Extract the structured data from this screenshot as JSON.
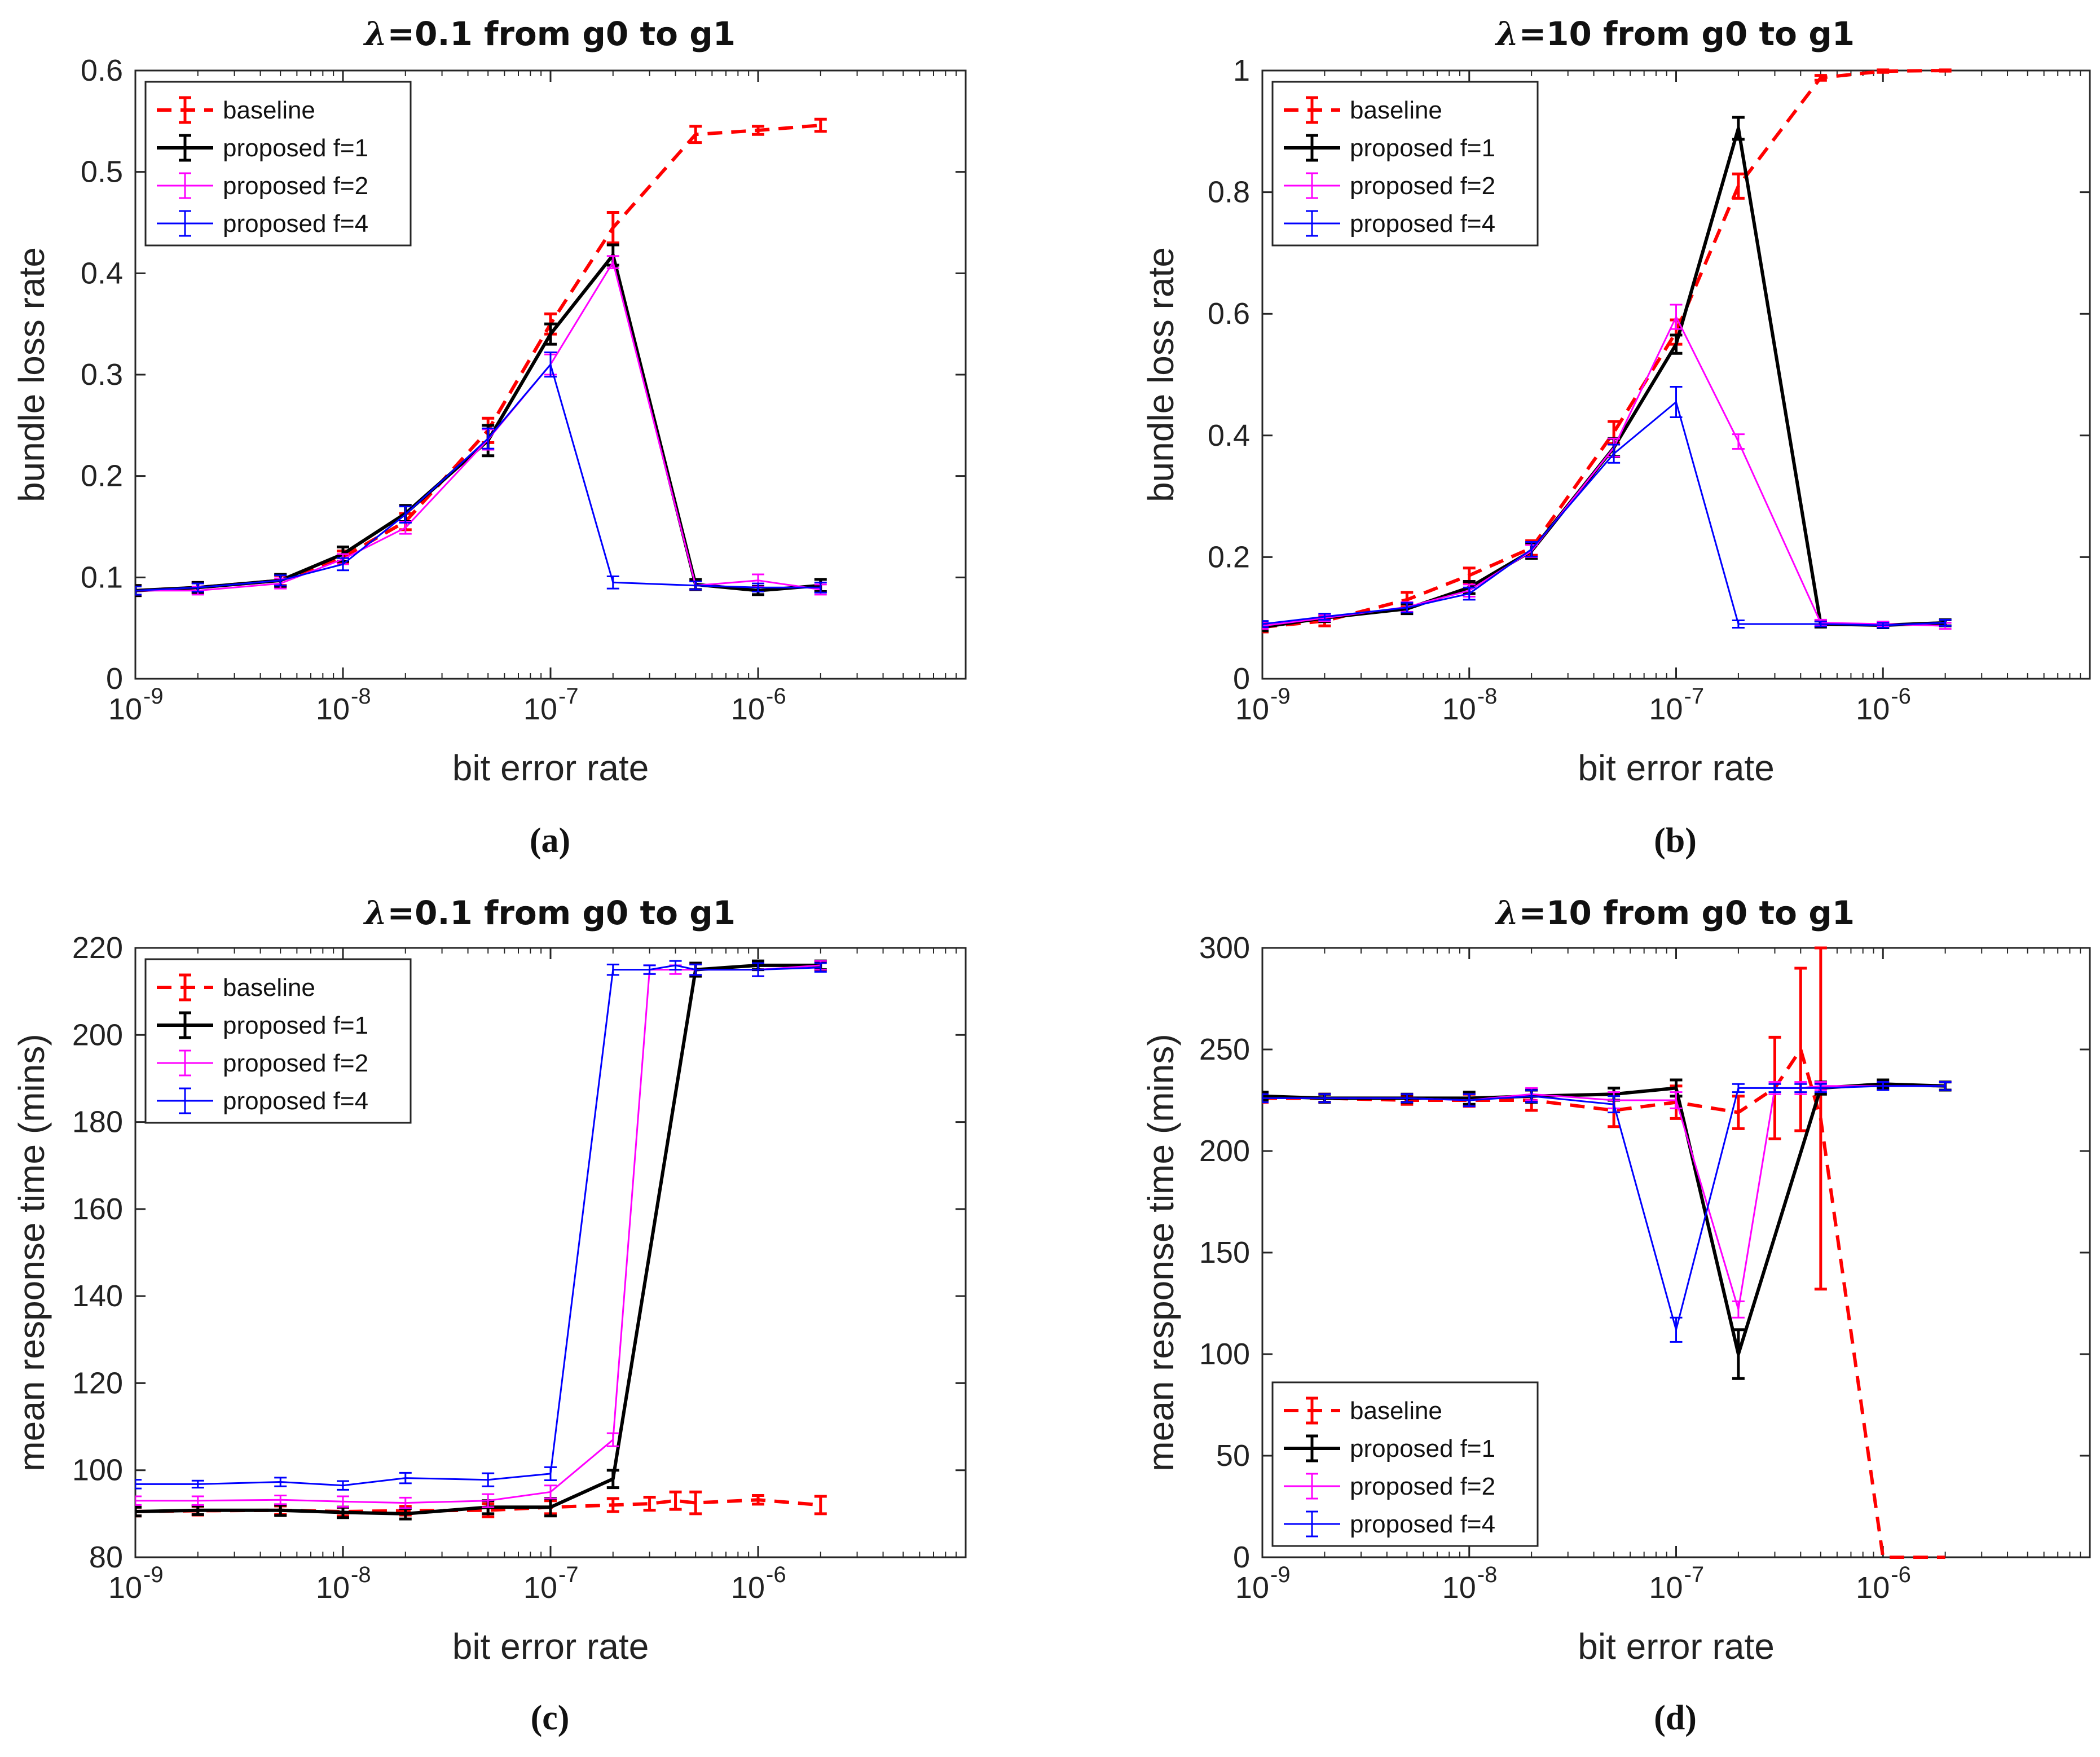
{
  "chart_data": [
    {
      "id": "a",
      "type": "line",
      "caption": "(a)",
      "title_prefix": "λ",
      "title_rest": "=0.1 from g0 to g1",
      "xlabel": "bit error rate",
      "ylabel": "bundle loss rate",
      "xscale": "log",
      "xlim": [
        -9,
        -5
      ],
      "ylim": [
        0,
        0.6
      ],
      "yticks": [
        "0",
        "0.1",
        "0.2",
        "0.3",
        "0.4",
        "0.5",
        "0.6"
      ],
      "ytick_values": [
        0,
        0.1,
        0.2,
        0.3,
        0.4,
        0.5,
        0.6
      ],
      "xticks": [
        {
          "base": "10",
          "exp": "-9"
        },
        {
          "base": "10",
          "exp": "-8"
        },
        {
          "base": "10",
          "exp": "-7"
        },
        {
          "base": "10",
          "exp": "-6"
        }
      ],
      "xtick_values": [
        -9,
        -8,
        -7,
        -6
      ],
      "legend_position": "top-left",
      "series": [
        {
          "name": "baseline",
          "color": "#ff0000",
          "dash": true,
          "width": 6,
          "x": [
            1e-09,
            2e-09,
            5e-09,
            1e-08,
            2e-08,
            5e-08,
            1e-07,
            2e-07,
            5e-07,
            1e-06,
            2e-06
          ],
          "y": [
            0.087,
            0.09,
            0.097,
            0.12,
            0.155,
            0.245,
            0.35,
            0.445,
            0.537,
            0.541,
            0.546
          ],
          "err": [
            0.005,
            0.005,
            0.005,
            0.006,
            0.008,
            0.012,
            0.01,
            0.015,
            0.008,
            0.004,
            0.006
          ]
        },
        {
          "name": "proposed f=1",
          "color": "#000000",
          "dash": false,
          "width": 6,
          "x": [
            1e-09,
            2e-09,
            5e-09,
            1e-08,
            2e-08,
            5e-08,
            1e-07,
            2e-07,
            5e-07,
            1e-06,
            2e-06
          ],
          "y": [
            0.087,
            0.09,
            0.097,
            0.123,
            0.163,
            0.235,
            0.34,
            0.418,
            0.093,
            0.087,
            0.092
          ],
          "err": [
            0.005,
            0.005,
            0.006,
            0.007,
            0.008,
            0.015,
            0.01,
            0.01,
            0.005,
            0.004,
            0.006
          ]
        },
        {
          "name": "proposed f=2",
          "color": "#ff00ff",
          "dash": false,
          "width": 3,
          "x": [
            1e-09,
            2e-09,
            5e-09,
            1e-08,
            2e-08,
            5e-08,
            1e-07,
            2e-07,
            5e-07,
            1e-06,
            2e-06
          ],
          "y": [
            0.087,
            0.087,
            0.094,
            0.118,
            0.149,
            0.236,
            0.31,
            0.411,
            0.092,
            0.097,
            0.088
          ],
          "err": [
            0.004,
            0.004,
            0.005,
            0.005,
            0.006,
            0.01,
            0.01,
            0.006,
            0.004,
            0.006,
            0.005
          ]
        },
        {
          "name": "proposed f=4",
          "color": "#0000ff",
          "dash": false,
          "width": 3,
          "x": [
            1e-09,
            2e-09,
            5e-09,
            1e-08,
            2e-08,
            5e-08,
            1e-07,
            2e-07,
            5e-07,
            1e-06,
            2e-06
          ],
          "y": [
            0.087,
            0.09,
            0.097,
            0.113,
            0.162,
            0.237,
            0.31,
            0.095,
            0.092,
            0.09,
            0.09
          ],
          "err": [
            0.004,
            0.004,
            0.005,
            0.006,
            0.008,
            0.01,
            0.012,
            0.006,
            0.004,
            0.004,
            0.005
          ]
        }
      ]
    },
    {
      "id": "b",
      "type": "line",
      "caption": "(b)",
      "title_prefix": "λ",
      "title_rest": "=10 from g0 to g1",
      "xlabel": "bit error rate",
      "ylabel": "bundle loss rate",
      "xscale": "log",
      "xlim": [
        -9,
        -5
      ],
      "ylim": [
        0,
        1
      ],
      "yticks": [
        "0",
        "0.2",
        "0.4",
        "0.6",
        "0.8",
        "1"
      ],
      "ytick_values": [
        0,
        0.2,
        0.4,
        0.6,
        0.8,
        1
      ],
      "xticks": [
        {
          "base": "10",
          "exp": "-9"
        },
        {
          "base": "10",
          "exp": "-8"
        },
        {
          "base": "10",
          "exp": "-7"
        },
        {
          "base": "10",
          "exp": "-6"
        }
      ],
      "xtick_values": [
        -9,
        -8,
        -7,
        -6
      ],
      "legend_position": "top-left",
      "series": [
        {
          "name": "baseline",
          "color": "#ff0000",
          "dash": true,
          "width": 6,
          "x": [
            1e-09,
            2e-09,
            5e-09,
            1e-08,
            2e-08,
            5e-08,
            1e-07,
            2e-07,
            5e-07,
            1e-06,
            2e-06
          ],
          "y": [
            0.085,
            0.095,
            0.13,
            0.17,
            0.215,
            0.405,
            0.57,
            0.81,
            0.988,
            0.999,
            1.0
          ],
          "err": [
            0.008,
            0.008,
            0.012,
            0.012,
            0.012,
            0.018,
            0.02,
            0.02,
            0.004,
            0.002,
            0.001
          ]
        },
        {
          "name": "proposed f=1",
          "color": "#000000",
          "dash": false,
          "width": 6,
          "x": [
            1e-09,
            2e-09,
            5e-09,
            1e-08,
            2e-08,
            5e-08,
            1e-07,
            2e-07,
            5e-07,
            1e-06,
            2e-06
          ],
          "y": [
            0.085,
            0.1,
            0.115,
            0.15,
            0.21,
            0.38,
            0.55,
            0.905,
            0.09,
            0.088,
            0.092
          ],
          "err": [
            0.006,
            0.006,
            0.008,
            0.01,
            0.012,
            0.015,
            0.015,
            0.018,
            0.005,
            0.004,
            0.005
          ]
        },
        {
          "name": "proposed f=2",
          "color": "#ff00ff",
          "dash": false,
          "width": 3,
          "x": [
            1e-09,
            2e-09,
            5e-09,
            1e-08,
            2e-08,
            5e-08,
            1e-07,
            2e-07,
            5e-07,
            1e-06,
            2e-06
          ],
          "y": [
            0.087,
            0.1,
            0.118,
            0.145,
            0.21,
            0.38,
            0.595,
            0.39,
            0.092,
            0.09,
            0.087
          ],
          "err": [
            0.005,
            0.005,
            0.008,
            0.01,
            0.01,
            0.015,
            0.02,
            0.012,
            0.005,
            0.004,
            0.005
          ]
        },
        {
          "name": "proposed f=4",
          "color": "#0000ff",
          "dash": false,
          "width": 3,
          "x": [
            1e-09,
            2e-09,
            5e-09,
            1e-08,
            2e-08,
            5e-08,
            1e-07,
            2e-07,
            5e-07,
            1e-06,
            2e-06
          ],
          "y": [
            0.09,
            0.102,
            0.117,
            0.14,
            0.213,
            0.37,
            0.455,
            0.09,
            0.09,
            0.088,
            0.092
          ],
          "err": [
            0.005,
            0.005,
            0.008,
            0.01,
            0.012,
            0.015,
            0.025,
            0.006,
            0.004,
            0.004,
            0.005
          ]
        }
      ]
    },
    {
      "id": "c",
      "type": "line",
      "caption": "(c)",
      "title_prefix": "λ",
      "title_rest": "=0.1 from g0 to g1",
      "xlabel": "bit error rate",
      "ylabel": "mean response time (mins)",
      "xscale": "log",
      "xlim": [
        -9,
        -5
      ],
      "ylim": [
        80,
        220
      ],
      "yticks": [
        "80",
        "100",
        "120",
        "140",
        "160",
        "180",
        "200",
        "220"
      ],
      "ytick_values": [
        80,
        100,
        120,
        140,
        160,
        180,
        200,
        220
      ],
      "xticks": [
        {
          "base": "10",
          "exp": "-9"
        },
        {
          "base": "10",
          "exp": "-8"
        },
        {
          "base": "10",
          "exp": "-7"
        },
        {
          "base": "10",
          "exp": "-6"
        }
      ],
      "xtick_values": [
        -9,
        -8,
        -7,
        -6
      ],
      "legend_position": "top-left",
      "series": [
        {
          "name": "baseline",
          "color": "#ff0000",
          "dash": true,
          "width": 6,
          "x": [
            1e-09,
            2e-09,
            5e-09,
            1e-08,
            2e-08,
            5e-08,
            1e-07,
            2e-07,
            3e-07,
            4e-07,
            5e-07,
            1e-06,
            2e-06
          ],
          "y": [
            90.5,
            90.7,
            90.8,
            90.5,
            90.7,
            90.8,
            91.5,
            92.0,
            92.3,
            93.0,
            92.5,
            93.2,
            92.0
          ],
          "err": [
            1.0,
            1.0,
            1.0,
            1.0,
            1.0,
            1.5,
            1.5,
            1.5,
            1.5,
            2.0,
            2.5,
            1.0,
            2.0
          ]
        },
        {
          "name": "proposed f=1",
          "color": "#000000",
          "dash": false,
          "width": 6,
          "x": [
            1e-09,
            2e-09,
            5e-09,
            1e-08,
            2e-08,
            5e-08,
            1e-07,
            2e-07,
            5e-07,
            1e-06,
            2e-06
          ],
          "y": [
            90.5,
            90.8,
            90.8,
            90.3,
            90.0,
            91.5,
            91.5,
            98.0,
            215.0,
            216.0,
            216.0
          ],
          "err": [
            1.0,
            1.0,
            1.2,
            1.2,
            1.2,
            1.5,
            2.0,
            2.0,
            1.5,
            1.0,
            1.0
          ]
        },
        {
          "name": "proposed f=2",
          "color": "#ff00ff",
          "dash": false,
          "width": 3,
          "x": [
            1e-09,
            2e-09,
            5e-09,
            1e-08,
            2e-08,
            5e-08,
            1e-07,
            2e-07,
            3e-07,
            4e-07,
            5e-07,
            1e-06,
            2e-06
          ],
          "y": [
            93.0,
            93.0,
            93.2,
            92.8,
            92.5,
            93.0,
            95.0,
            107.0,
            215.0,
            215.0,
            215.0,
            215.0,
            216.0
          ],
          "err": [
            1.0,
            1.0,
            1.0,
            1.2,
            1.2,
            1.5,
            1.5,
            1.5,
            1.0,
            1.0,
            1.2,
            1.5,
            1.0
          ]
        },
        {
          "name": "proposed f=4",
          "color": "#0000ff",
          "dash": false,
          "width": 3,
          "x": [
            1e-09,
            2e-09,
            5e-09,
            1e-08,
            2e-08,
            5e-08,
            1e-07,
            2e-07,
            3e-07,
            4e-07,
            5e-07,
            1e-06,
            2e-06
          ],
          "y": [
            96.8,
            96.8,
            97.3,
            96.5,
            98.2,
            97.8,
            99.2,
            215.0,
            215.0,
            216.0,
            215.0,
            215.0,
            215.5
          ],
          "err": [
            1.0,
            0.8,
            1.0,
            1.0,
            1.2,
            1.5,
            1.5,
            1.2,
            1.0,
            1.0,
            1.2,
            1.5,
            1.0
          ]
        }
      ]
    },
    {
      "id": "d",
      "type": "line",
      "caption": "(d)",
      "title_prefix": "λ",
      "title_rest": "=10 from g0 to g1",
      "xlabel": "bit error rate",
      "ylabel": "mean response time (mins)",
      "xscale": "log",
      "xlim": [
        -9,
        -5
      ],
      "ylim": [
        0,
        300
      ],
      "yticks": [
        "0",
        "50",
        "100",
        "150",
        "200",
        "250",
        "300"
      ],
      "ytick_values": [
        0,
        50,
        100,
        150,
        200,
        250,
        300
      ],
      "xticks": [
        {
          "base": "10",
          "exp": "-9"
        },
        {
          "base": "10",
          "exp": "-8"
        },
        {
          "base": "10",
          "exp": "-7"
        },
        {
          "base": "10",
          "exp": "-6"
        }
      ],
      "xtick_values": [
        -9,
        -8,
        -7,
        -6
      ],
      "legend_position": "bottom-left",
      "series": [
        {
          "name": "baseline",
          "color": "#ff0000",
          "dash": true,
          "width": 6,
          "x": [
            1e-09,
            2e-09,
            5e-09,
            1e-08,
            2e-08,
            5e-08,
            1e-07,
            2e-07,
            3e-07,
            4e-07,
            5e-07,
            1e-06,
            2e-06
          ],
          "y": [
            226,
            226,
            225,
            225,
            225,
            220,
            224,
            219,
            231,
            250,
            216,
            0,
            0
          ],
          "err": [
            2,
            2,
            2,
            3,
            5,
            8,
            8,
            8,
            25,
            40,
            84,
            0,
            0
          ]
        },
        {
          "name": "proposed f=1",
          "color": "#000000",
          "dash": false,
          "width": 6,
          "x": [
            1e-09,
            2e-09,
            5e-09,
            1e-08,
            2e-08,
            5e-08,
            1e-07,
            2e-07,
            5e-07,
            1e-06,
            2e-06
          ],
          "y": [
            227,
            226,
            226,
            226,
            227,
            228,
            231,
            100,
            231,
            233,
            232
          ],
          "err": [
            2,
            2,
            2,
            3,
            3,
            3,
            4,
            12,
            3,
            2,
            2
          ]
        },
        {
          "name": "proposed f=2",
          "color": "#ff00ff",
          "dash": false,
          "width": 3,
          "x": [
            1e-09,
            2e-09,
            5e-09,
            1e-08,
            2e-08,
            5e-08,
            1e-07,
            2e-07,
            3e-07,
            4e-07,
            5e-07,
            1e-06,
            2e-06
          ],
          "y": [
            226,
            226,
            226,
            225,
            228,
            225,
            225,
            122,
            231,
            231,
            232,
            232,
            232
          ],
          "err": [
            2,
            2,
            2,
            3,
            3,
            4,
            4,
            4,
            3,
            3,
            2,
            2,
            2
          ]
        },
        {
          "name": "proposed f=4",
          "color": "#0000ff",
          "dash": false,
          "width": 3,
          "x": [
            1e-09,
            2e-09,
            5e-09,
            1e-08,
            2e-08,
            5e-08,
            1e-07,
            2e-07,
            3e-07,
            4e-07,
            5e-07,
            1e-06,
            2e-06
          ],
          "y": [
            226,
            226,
            226,
            225,
            227,
            223,
            112,
            231,
            231,
            231,
            231,
            232,
            232
          ],
          "err": [
            2,
            2,
            2,
            3,
            3,
            4,
            6,
            2,
            2,
            2,
            2,
            2,
            2
          ]
        }
      ]
    }
  ]
}
